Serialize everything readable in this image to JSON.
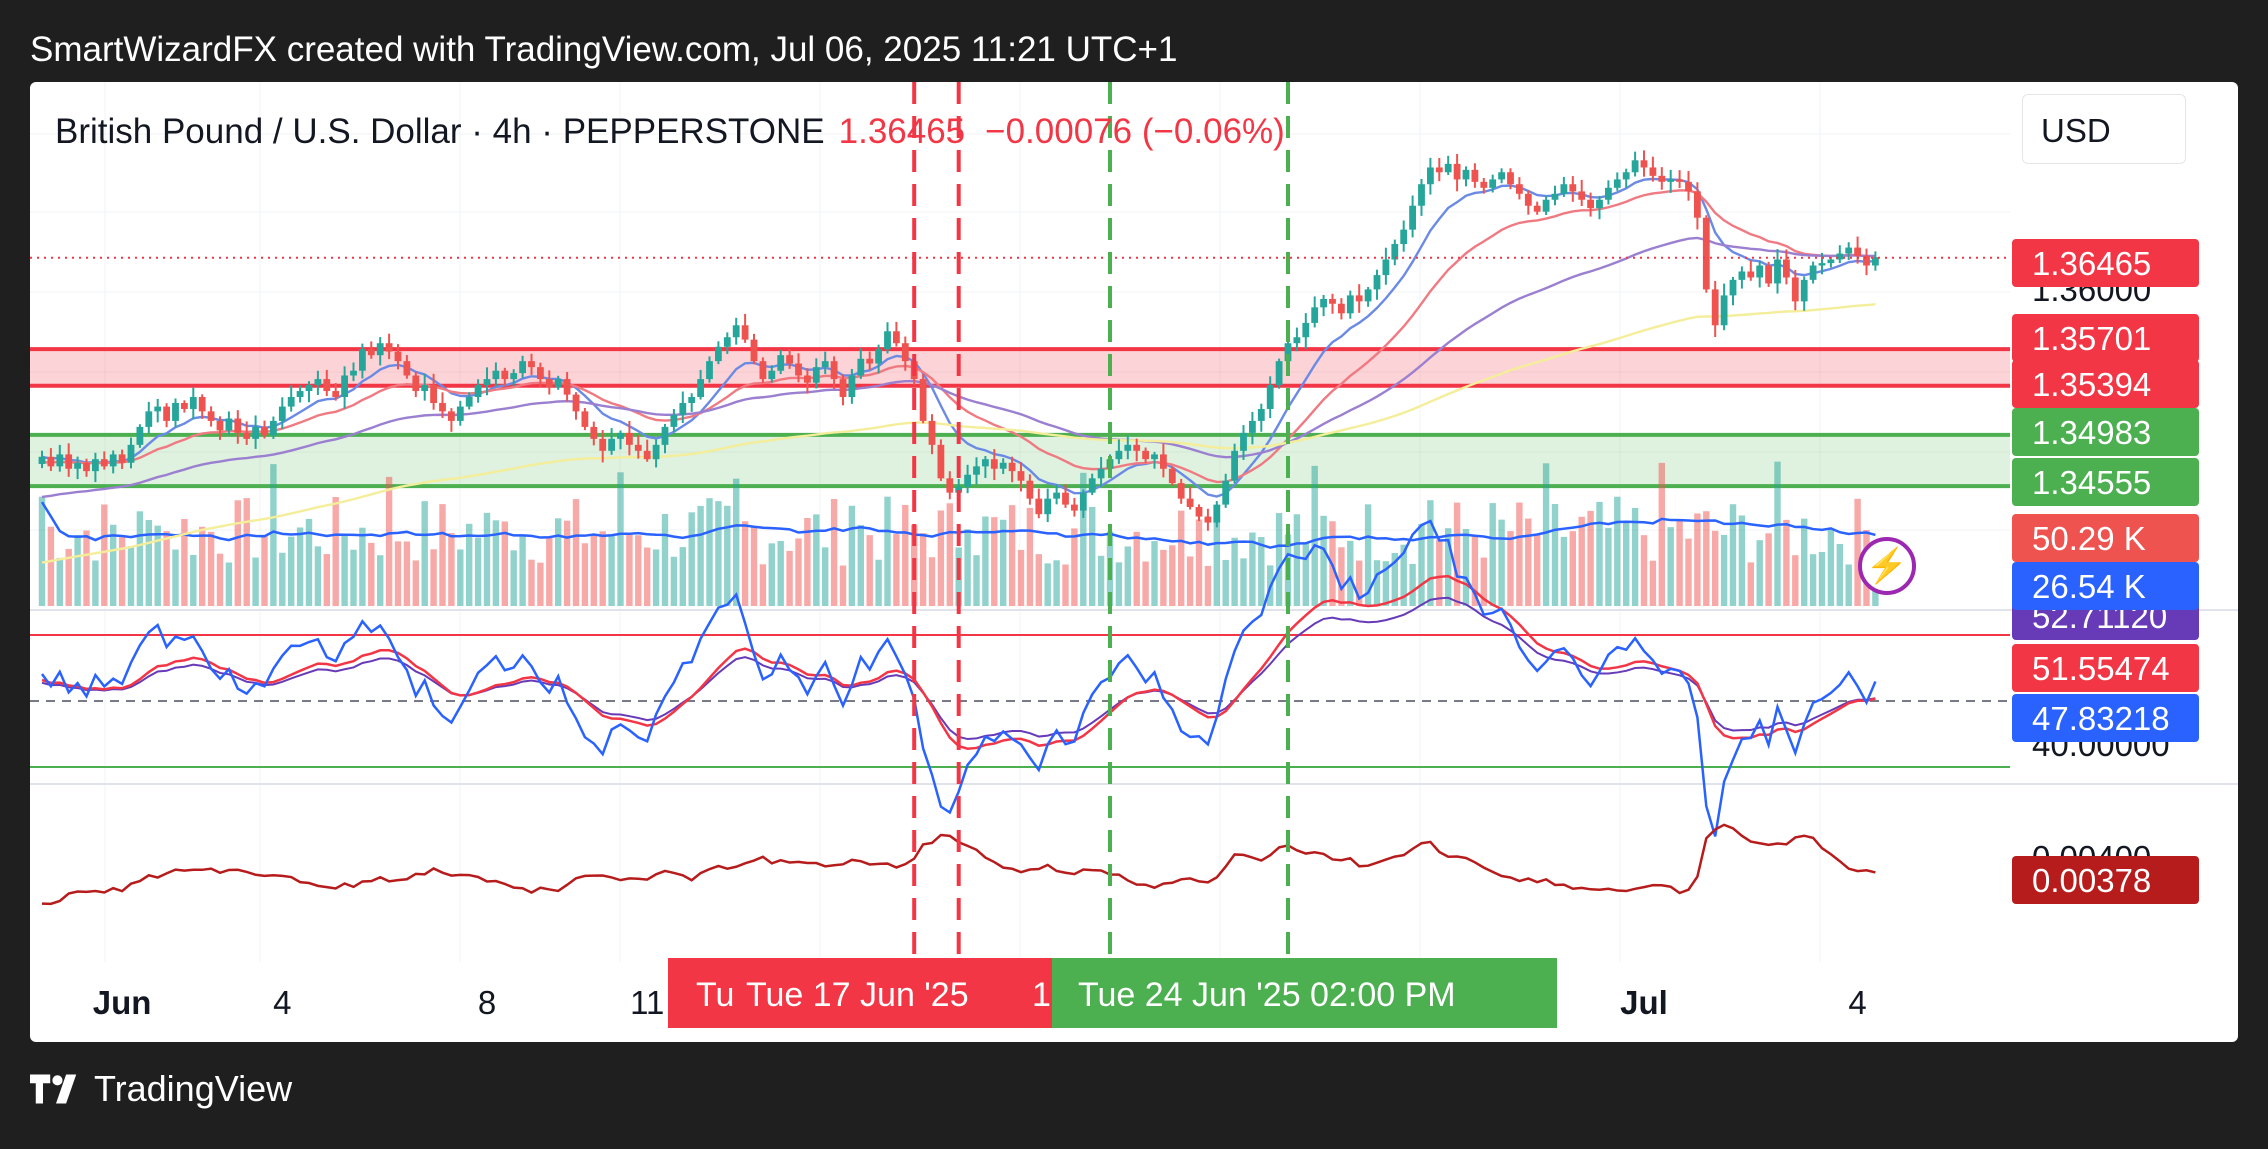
{
  "credit": "SmartWizardFX created with TradingView.com, Jul 06, 2025 11:21 UTC+1",
  "footer": {
    "brand": "TradingView",
    "logo_icon": "tradingview-logo-icon"
  },
  "legend": {
    "symbol": "British Pound / U.S. Dollar · 4h · PEPPERSTONE",
    "last": "1.36465",
    "change": "−0.00076 (−0.06%)"
  },
  "currency_button": "USD",
  "colors": {
    "up": "#26a69a",
    "down": "#ef5350",
    "red_zone": "#f23645",
    "green_zone": "#4caf50",
    "ema_fast": "#6b8ae6",
    "ema_mid": "#f07a82",
    "ema_slow": "#9b7fd1",
    "ema_long": "#f4ee9a",
    "rsi_blue": "#2962ff",
    "rsi_red": "#f23645",
    "atr": "#b71c1c"
  },
  "chart_data": {
    "type": "candlestick",
    "timeframe": "4h",
    "price_range": [
      1.3392,
      1.375
    ],
    "x_labels": [
      {
        "i": 9,
        "text": "Jun"
      },
      {
        "i": 27,
        "text": "4"
      },
      {
        "i": 50,
        "text": "8"
      },
      {
        "i": 68,
        "text": "11"
      },
      {
        "i": 180,
        "text": "Jul"
      },
      {
        "i": 204,
        "text": "4"
      }
    ],
    "last_price": 1.36465,
    "price_axis": [
      {
        "price": 1.36465,
        "text": "1.36465",
        "color": "#f23645"
      },
      {
        "price": 1.36,
        "text": "1.36000",
        "color": "none"
      },
      {
        "price": 1.35701,
        "text": "1.35701",
        "color": "#f23645"
      },
      {
        "price": 1.35394,
        "text": "1.35394",
        "color": "#f23645"
      },
      {
        "price": 1.34983,
        "text": "1.34983",
        "color": "#4caf50"
      },
      {
        "price": 1.34555,
        "text": "1.34555",
        "color": "#4caf50"
      }
    ],
    "zones": [
      {
        "name": "resistance",
        "top": 1.35701,
        "bottom": 1.35394
      },
      {
        "name": "support",
        "top": 1.34983,
        "bottom": 1.34555
      }
    ],
    "vertical_lines": [
      {
        "i": 98,
        "color": "#f23645"
      },
      {
        "i": 103,
        "color": "#f23645"
      },
      {
        "i": 120,
        "color": "#4caf50"
      },
      {
        "i": 140,
        "color": "#4caf50"
      }
    ],
    "time_highlights": [
      {
        "text": "Tue 17 Jun '25",
        "side": "Tu",
        "next": "1",
        "color": "#f23645"
      },
      {
        "text": "Tue 24 Jun '25   02:00 PM",
        "color": "#4caf50"
      }
    ],
    "closes": [
      1.348,
      1.3472,
      1.3482,
      1.347,
      1.3475,
      1.3468,
      1.3478,
      1.3472,
      1.3482,
      1.3475,
      1.349,
      1.3505,
      1.3518,
      1.3522,
      1.351,
      1.3525,
      1.352,
      1.353,
      1.3518,
      1.351,
      1.3502,
      1.3512,
      1.35,
      1.3495,
      1.3505,
      1.3498,
      1.351,
      1.3522,
      1.353,
      1.3535,
      1.354,
      1.3545,
      1.3535,
      1.353,
      1.3548,
      1.3552,
      1.357,
      1.3565,
      1.3575,
      1.3568,
      1.356,
      1.3548,
      1.3535,
      1.354,
      1.3525,
      1.3518,
      1.351,
      1.3522,
      1.353,
      1.354,
      1.3545,
      1.3552,
      1.3545,
      1.355,
      1.356,
      1.3555,
      1.3545,
      1.3538,
      1.3545,
      1.3532,
      1.3518,
      1.3505,
      1.3495,
      1.3485,
      1.3495,
      1.35,
      1.349,
      1.3485,
      1.3478,
      1.349,
      1.3505,
      1.3515,
      1.3525,
      1.353,
      1.3545,
      1.356,
      1.3572,
      1.358,
      1.359,
      1.3578,
      1.356,
      1.3545,
      1.3552,
      1.3565,
      1.3558,
      1.3548,
      1.3542,
      1.3555,
      1.356,
      1.3545,
      1.353,
      1.3548,
      1.3562,
      1.3558,
      1.357,
      1.3585,
      1.3575,
      1.356,
      1.3545,
      1.351,
      1.349,
      1.3462,
      1.345,
      1.3455,
      1.3465,
      1.3472,
      1.3478,
      1.347,
      1.3475,
      1.3468,
      1.346,
      1.3445,
      1.3432,
      1.3445,
      1.345,
      1.344,
      1.3435,
      1.345,
      1.3462,
      1.347,
      1.3478,
      1.3485,
      1.349,
      1.3485,
      1.3478,
      1.3482,
      1.347,
      1.3458,
      1.3445,
      1.3438,
      1.343,
      1.3425,
      1.344,
      1.346,
      1.3485,
      1.35,
      1.351,
      1.352,
      1.354,
      1.356,
      1.3575,
      1.358,
      1.3592,
      1.3605,
      1.3612,
      1.3608,
      1.36,
      1.3615,
      1.361,
      1.362,
      1.3632,
      1.3645,
      1.3658,
      1.367,
      1.369,
      1.3708,
      1.3722,
      1.3718,
      1.3725,
      1.3712,
      1.372,
      1.371,
      1.3705,
      1.3712,
      1.3718,
      1.3708,
      1.37,
      1.369,
      1.3685,
      1.3695,
      1.37,
      1.3708,
      1.3702,
      1.3695,
      1.3688,
      1.3695,
      1.3705,
      1.3712,
      1.3718,
      1.3728,
      1.3722,
      1.3715,
      1.371,
      1.3712,
      1.371,
      1.3702,
      1.368,
      1.362,
      1.359,
      1.3615,
      1.3628,
      1.3635,
      1.363,
      1.364,
      1.3625,
      1.3645,
      1.363,
      1.361,
      1.3628,
      1.364,
      1.3642,
      1.3645,
      1.365,
      1.3655,
      1.3648,
      1.364,
      1.3647
    ],
    "volume": {
      "labels": [
        {
          "text": "50.29 K",
          "color": "#ef5350"
        },
        {
          "text": "26.54 K",
          "color": "#2962ff"
        }
      ]
    },
    "rsi": {
      "levels": [
        {
          "text": "52.71120",
          "color": "#673ab7"
        },
        {
          "text": "51.55474",
          "color": "#f23645"
        },
        {
          "text": "47.83218",
          "color": "#2962ff"
        },
        {
          "text": "40.00000",
          "color": "none"
        }
      ]
    },
    "atr": {
      "axis_text": "0.00400",
      "last_text": "0.00378",
      "last_color": "#b71c1c"
    }
  }
}
